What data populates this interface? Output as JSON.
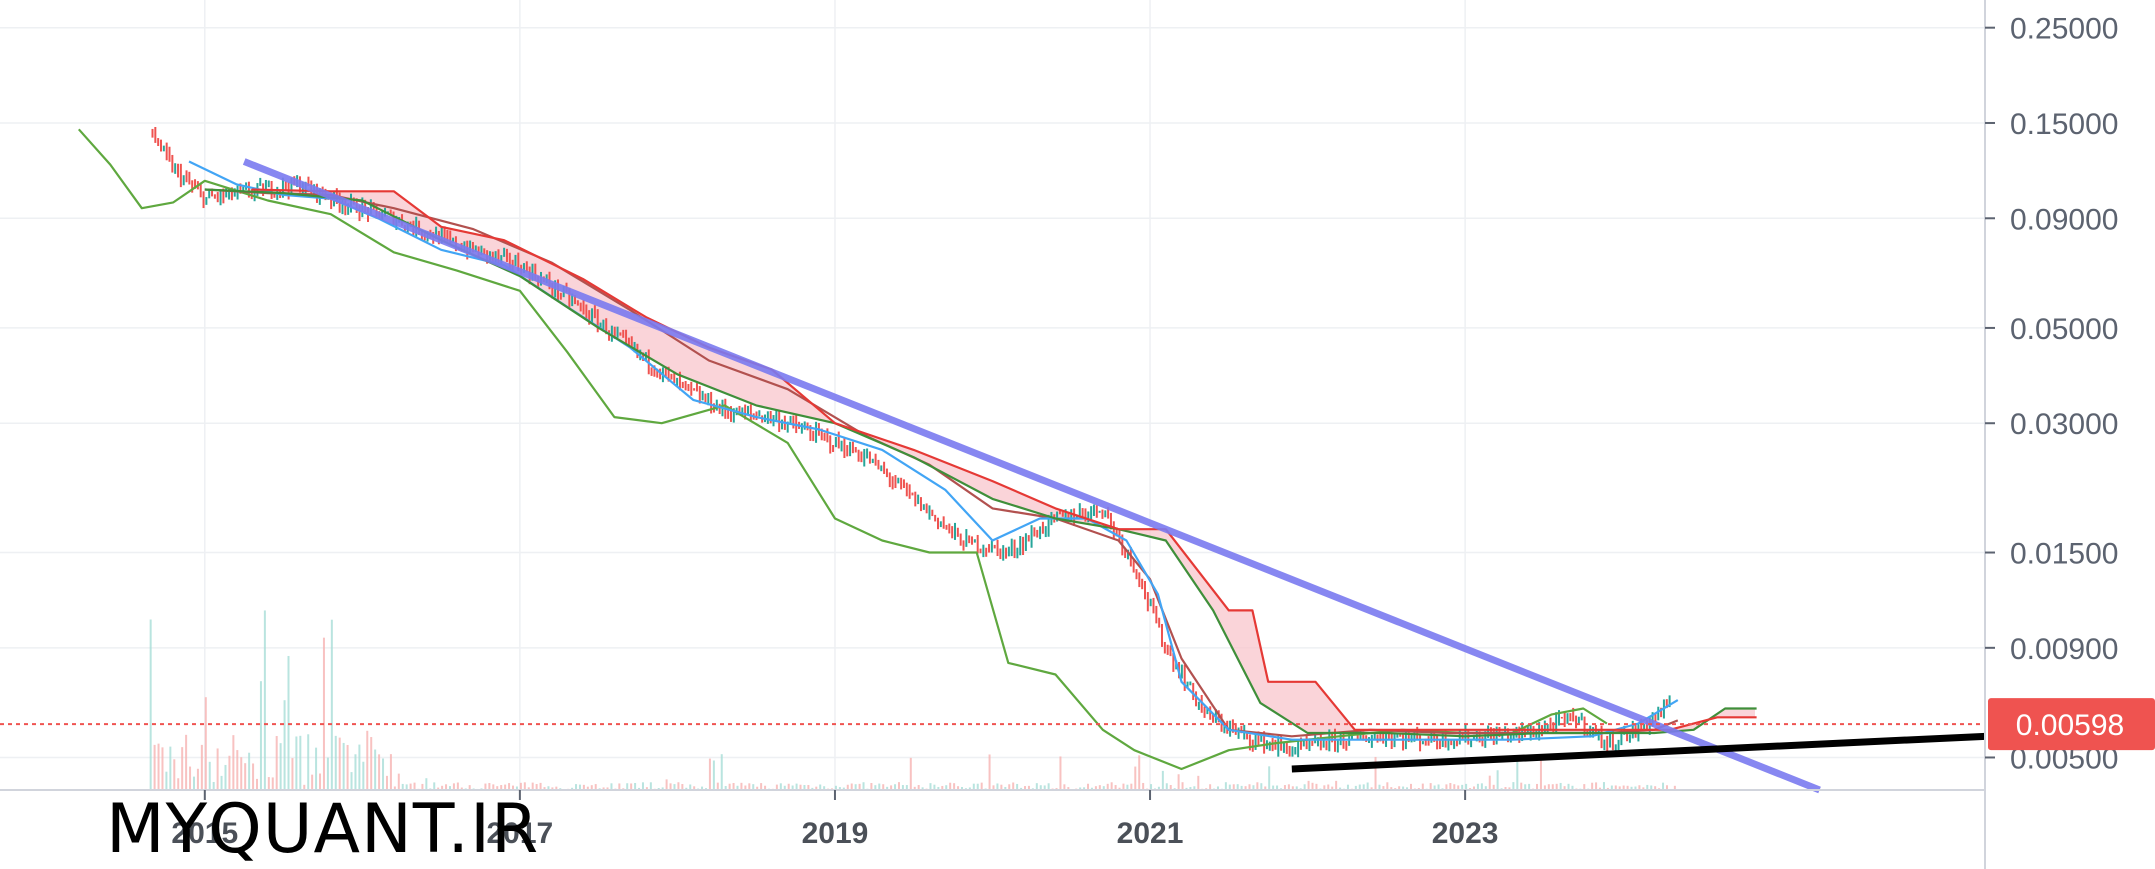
{
  "watermark": "MYQUANT.IR",
  "colors": {
    "price_up": "#26a69a",
    "price_down": "#ef5350",
    "tenkan": "#42a5f5",
    "kijun": "#b2514f",
    "chikou": "#5fa83f",
    "span_a": "#3f8f3a",
    "span_b": "#e53935",
    "cloud_fill": "#f8c6cc",
    "down_trendline": "#7b7bf0",
    "support_line": "#000000",
    "current_price": "#ef5350",
    "grid": "#eef0f3"
  },
  "chart_data": {
    "type": "line",
    "scale": "log",
    "ylim": [
      0.0042,
      0.29
    ],
    "xlim": [
      2013.7,
      2026.3
    ],
    "y_ticks": [
      "0.25000",
      "0.15000",
      "0.09000",
      "0.05000",
      "0.03000",
      "0.01500",
      "0.00900",
      "0.00500"
    ],
    "x_ticks": [
      "2015",
      "2017",
      "2019",
      "2021",
      "2023"
    ],
    "current_price": "0.00598",
    "grid": true,
    "series": [
      {
        "key": "price",
        "x": [
          2014.65,
          2014.8,
          2015.0,
          2015.3,
          2015.6,
          2015.9,
          2016.2,
          2016.6,
          2017.0,
          2017.3,
          2017.6,
          2018.0,
          2018.3,
          2018.6,
          2018.9,
          2019.2,
          2019.5,
          2019.8,
          2020.1,
          2020.4,
          2020.7,
          2020.9,
          2021.1,
          2021.35,
          2021.6,
          2021.9,
          2022.2,
          2022.5,
          2022.8,
          2023.1,
          2023.4,
          2023.7,
          2023.9,
          2024.1,
          2024.3
        ],
        "values": [
          0.145,
          0.117,
          0.1,
          0.104,
          0.108,
          0.097,
          0.09,
          0.078,
          0.07,
          0.059,
          0.048,
          0.037,
          0.032,
          0.031,
          0.028,
          0.025,
          0.02,
          0.016,
          0.015,
          0.018,
          0.019,
          0.014,
          0.009,
          0.0063,
          0.0056,
          0.0052,
          0.0055,
          0.0056,
          0.0055,
          0.0056,
          0.0057,
          0.0062,
          0.0054,
          0.0058,
          0.0067
        ]
      },
      {
        "key": "tenkan",
        "x": [
          2014.9,
          2015.2,
          2015.5,
          2015.8,
          2016.1,
          2016.5,
          2016.9,
          2017.3,
          2017.7,
          2018.1,
          2018.5,
          2018.9,
          2019.3,
          2019.7,
          2020.0,
          2020.3,
          2020.6,
          2020.85,
          2021.05,
          2021.2,
          2021.5,
          2021.9,
          2022.3,
          2022.8,
          2023.3,
          2023.8,
          2024.1,
          2024.35
        ],
        "values": [
          0.122,
          0.108,
          0.102,
          0.1,
          0.09,
          0.076,
          0.07,
          0.056,
          0.045,
          0.034,
          0.031,
          0.029,
          0.026,
          0.021,
          0.016,
          0.018,
          0.018,
          0.016,
          0.012,
          0.0075,
          0.0058,
          0.0055,
          0.0055,
          0.0055,
          0.0055,
          0.0056,
          0.006,
          0.0068
        ]
      },
      {
        "key": "kijun",
        "x": [
          2015.0,
          2015.4,
          2015.8,
          2016.2,
          2016.7,
          2017.2,
          2017.7,
          2018.2,
          2018.7,
          2019.2,
          2019.6,
          2020.0,
          2020.4,
          2020.8,
          2021.0,
          2021.2,
          2021.5,
          2021.9,
          2022.4,
          2022.9,
          2023.4,
          2023.9,
          2024.2,
          2024.35
        ],
        "values": [
          0.105,
          0.103,
          0.102,
          0.095,
          0.085,
          0.071,
          0.055,
          0.042,
          0.036,
          0.028,
          0.024,
          0.019,
          0.018,
          0.016,
          0.013,
          0.0085,
          0.0058,
          0.0056,
          0.0058,
          0.0057,
          0.0057,
          0.0057,
          0.0058,
          0.0061
        ]
      },
      {
        "key": "chikou",
        "x": [
          2014.2,
          2014.4,
          2014.6,
          2014.8,
          2015.0,
          2015.4,
          2015.8,
          2016.2,
          2016.6,
          2017.0,
          2017.3,
          2017.6,
          2017.9,
          2018.3,
          2018.7,
          2019.0,
          2019.3,
          2019.6,
          2019.9,
          2020.1,
          2020.4,
          2020.7,
          2020.9,
          2021.2,
          2021.5,
          2021.8,
          2022.2,
          2022.6,
          2023.0,
          2023.3,
          2023.55,
          2023.75,
          2023.9
        ],
        "values": [
          0.145,
          0.12,
          0.095,
          0.098,
          0.11,
          0.099,
          0.092,
          0.075,
          0.068,
          0.061,
          0.044,
          0.031,
          0.03,
          0.033,
          0.027,
          0.018,
          0.016,
          0.015,
          0.015,
          0.0083,
          0.0078,
          0.0058,
          0.0052,
          0.0047,
          0.0052,
          0.0054,
          0.0056,
          0.0058,
          0.0057,
          0.0057,
          0.0063,
          0.0065,
          0.006
        ]
      },
      {
        "key": "span_a",
        "x": [
          2015.0,
          2015.5,
          2016.0,
          2016.5,
          2017.0,
          2017.5,
          2018.0,
          2018.5,
          2019.0,
          2019.5,
          2020.0,
          2020.4,
          2020.8,
          2021.1,
          2021.4,
          2021.7,
          2022.0,
          2022.5,
          2023.0,
          2023.5,
          2024.0,
          2024.2,
          2024.45,
          2024.65,
          2024.85
        ],
        "values": [
          0.105,
          0.103,
          0.099,
          0.08,
          0.066,
          0.05,
          0.039,
          0.033,
          0.03,
          0.025,
          0.02,
          0.018,
          0.017,
          0.016,
          0.011,
          0.0067,
          0.0057,
          0.0057,
          0.0056,
          0.0057,
          0.0057,
          0.0057,
          0.0058,
          0.0065,
          0.0065
        ]
      },
      {
        "key": "span_b",
        "x": [
          2015.3,
          2015.8,
          2016.2,
          2016.5,
          2016.9,
          2017.4,
          2017.8,
          2018.2,
          2018.6,
          2019.0,
          2019.5,
          2020.0,
          2020.4,
          2020.8,
          2021.1,
          2021.5,
          2021.65,
          2021.75,
          2022.05,
          2022.3,
          2022.5,
          2022.9,
          2023.5,
          2024.0,
          2024.3,
          2024.6,
          2024.85
        ],
        "values": [
          0.105,
          0.104,
          0.104,
          0.086,
          0.08,
          0.065,
          0.053,
          0.045,
          0.04,
          0.03,
          0.026,
          0.022,
          0.019,
          0.017,
          0.017,
          0.011,
          0.011,
          0.0075,
          0.0075,
          0.0058,
          0.0058,
          0.0058,
          0.0058,
          0.0058,
          0.0058,
          0.0062,
          0.0062
        ]
      }
    ],
    "trendlines": [
      {
        "key": "down_trendline",
        "x": [
          2015.25,
          2025.25
        ],
        "values": [
          0.122,
          0.0042
        ]
      },
      {
        "key": "support_line",
        "x": [
          2021.9,
          2026.3
        ],
        "values": [
          0.0047,
          0.0056
        ]
      }
    ]
  }
}
